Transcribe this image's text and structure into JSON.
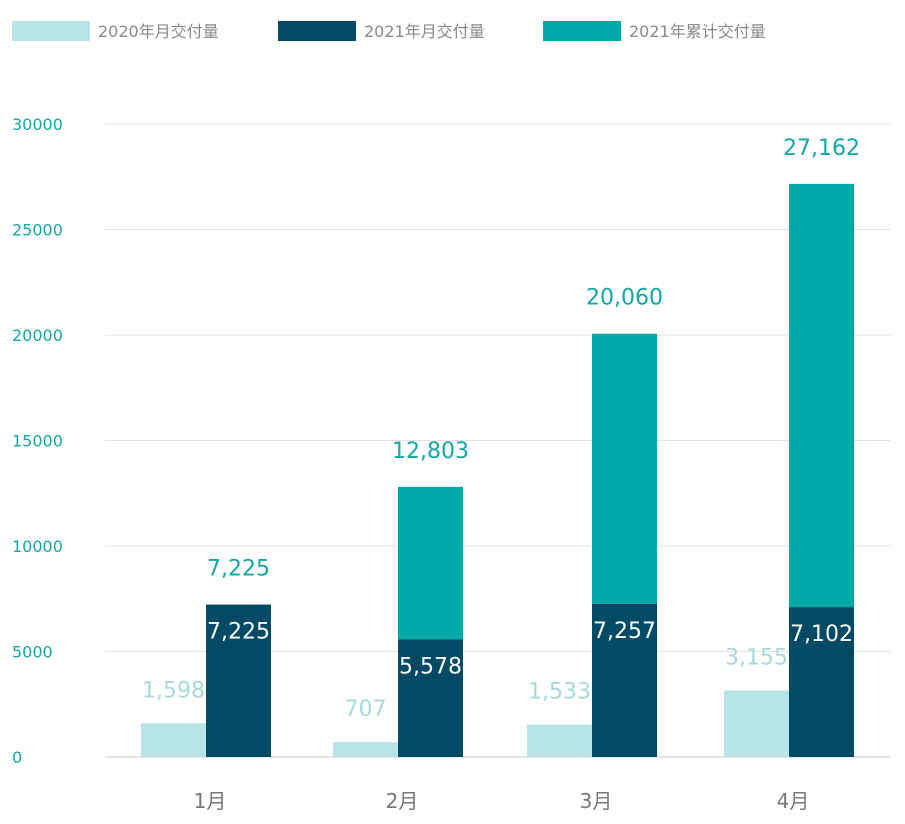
{
  "chart_data": {
    "type": "bar",
    "stacked_series": "2021年累计交付量 stacked over 2021年月交付量",
    "categories": [
      "1月",
      "2月",
      "3月",
      "4月"
    ],
    "series": [
      {
        "name": "2020年月交付量",
        "values": [
          1598,
          707,
          1533,
          3155
        ],
        "labels": [
          "1,598",
          "707",
          "1,533",
          "3,155"
        ],
        "color": "#b6e4e7",
        "label_color": "#a9d9d9"
      },
      {
        "name": "2021年月交付量",
        "values": [
          7225,
          5578,
          7257,
          7102
        ],
        "labels": [
          "7,225",
          "5,578",
          "7,257",
          "7,102"
        ],
        "color": "#004a66",
        "label_color": "#ffffff"
      },
      {
        "name": "2021年累计交付量",
        "values": [
          7225,
          12803,
          20060,
          27162
        ],
        "labels": [
          "7,225",
          "12,803",
          "20,060",
          "27,162"
        ],
        "color": "#00a8a8",
        "label_color": "#13a8a6"
      }
    ],
    "yticks": [
      "0",
      "5000",
      "10000",
      "15000",
      "20000",
      "25000",
      "30000"
    ],
    "ylim": [
      0,
      30000
    ],
    "grid": true,
    "legend": "top-left",
    "axis_label_color": "#13a8a6"
  }
}
